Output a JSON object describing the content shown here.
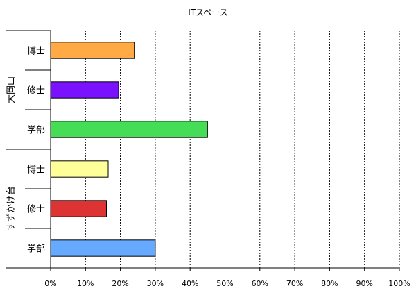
{
  "chart_data": {
    "type": "bar",
    "orientation": "horizontal",
    "title": "ITスペース",
    "xlabel": "",
    "ylabel": "",
    "xlim": [
      0,
      100
    ],
    "x_ticks": [
      "0%",
      "10%",
      "20%",
      "30%",
      "40%",
      "50%",
      "60%",
      "70%",
      "80%",
      "90%",
      "100%"
    ],
    "grid": "vertical-dashed",
    "groups": [
      {
        "name": "大岡山",
        "bars": [
          {
            "category": "博士",
            "value": 24,
            "color": "#ffaa44"
          },
          {
            "category": "修士",
            "value": 19.5,
            "color": "#7a12ff"
          },
          {
            "category": "学部",
            "value": 45,
            "color": "#44dd55"
          }
        ]
      },
      {
        "name": "すずかけ台",
        "bars": [
          {
            "category": "博士",
            "value": 16.5,
            "color": "#ffff99"
          },
          {
            "category": "修士",
            "value": 16,
            "color": "#dd3333"
          },
          {
            "category": "学部",
            "value": 30,
            "color": "#66aaff"
          }
        ]
      }
    ]
  }
}
